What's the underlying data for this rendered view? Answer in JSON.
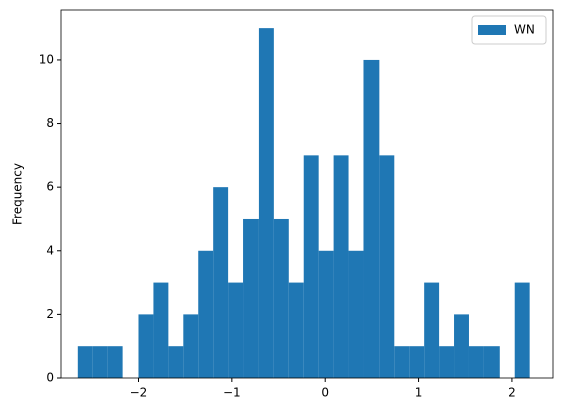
{
  "chart_data": {
    "type": "histogram",
    "y_label": "Frequency",
    "legend": "upper right",
    "series": [
      {
        "name": "WN",
        "color": "#1f77b4",
        "bins": [
          -2.65,
          -2.49,
          -2.33,
          -2.17,
          -2.0,
          -1.84,
          -1.68,
          -1.52,
          -1.36,
          -1.2,
          -1.04,
          -0.88,
          -0.71,
          -0.55,
          -0.39,
          -0.23,
          -0.07,
          0.09,
          0.25,
          0.41,
          0.58,
          0.74,
          0.9,
          1.06,
          1.22,
          1.38,
          1.54,
          1.7,
          1.87,
          2.03,
          2.19
        ],
        "values": [
          1,
          1,
          1,
          0,
          2,
          3,
          1,
          2,
          4,
          6,
          3,
          5,
          11,
          5,
          3,
          7,
          4,
          7,
          4,
          10,
          7,
          1,
          1,
          3,
          1,
          2,
          1,
          1,
          0,
          3
        ]
      }
    ],
    "xlim": [
      -2.83,
      2.44
    ],
    "ylim": [
      0,
      11.57
    ],
    "xticks": [
      {
        "value": -2,
        "label": "−2"
      },
      {
        "value": -1,
        "label": "−1"
      },
      0,
      1,
      2
    ],
    "yticks": [
      0,
      2,
      4,
      6,
      8,
      10
    ]
  }
}
